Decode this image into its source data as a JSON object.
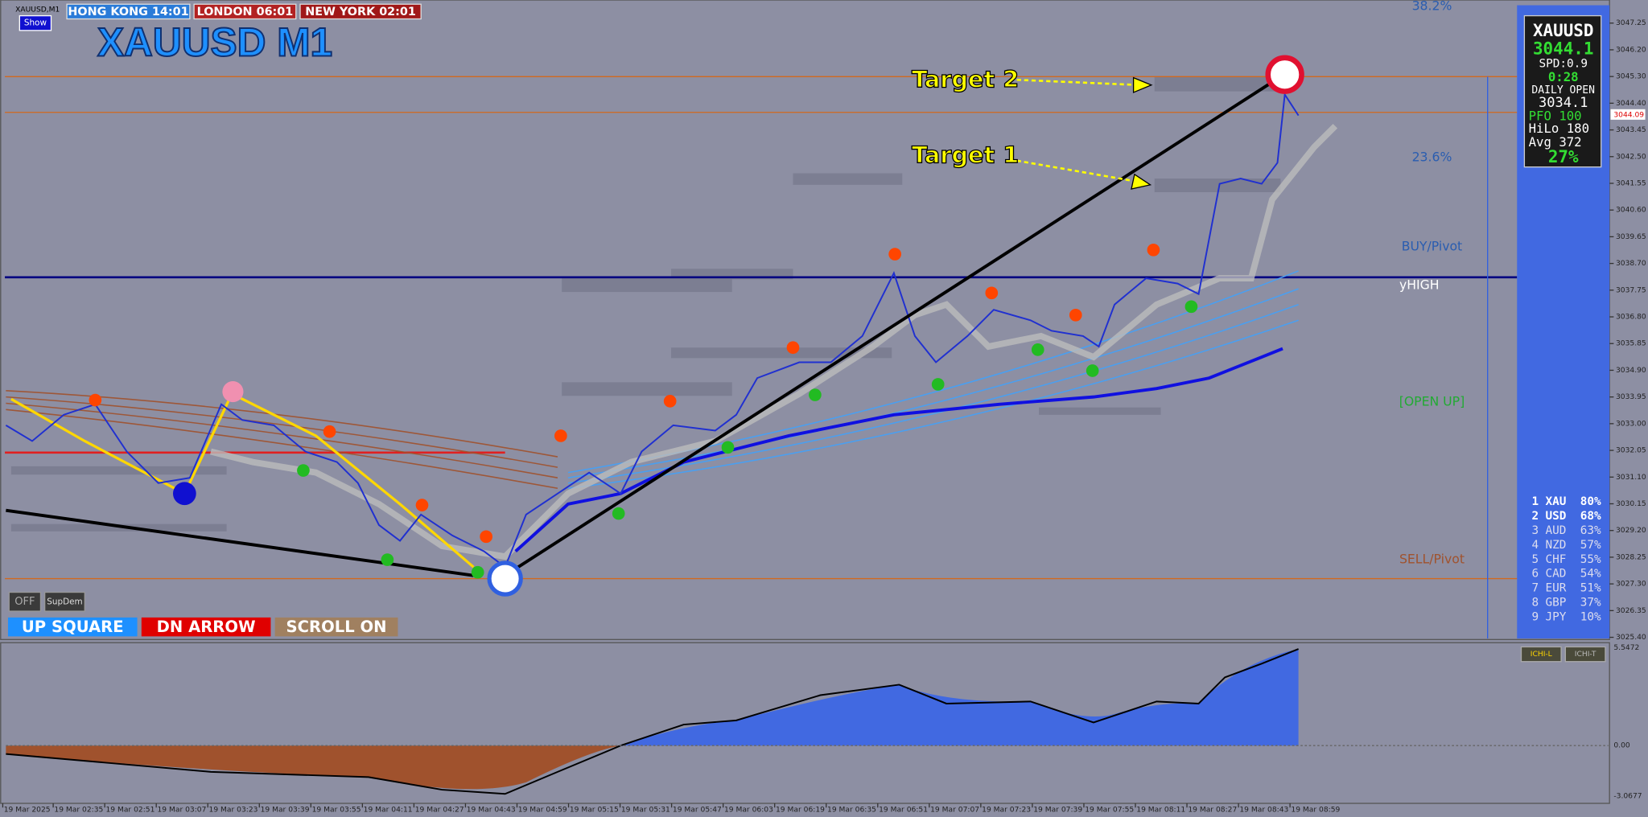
{
  "window": {
    "title": "XAUUSD,M1",
    "show_button": "Show"
  },
  "clocks": [
    "HONG KONG 14:01",
    "LONDON 06:01",
    "NEW YORK 02:01"
  ],
  "symbol_title": "XAUUSD M1",
  "annotations": {
    "target_2": "Target 2",
    "target_1": "Target 1"
  },
  "levels": {
    "fib_382": "38.2%",
    "fib_236": "23.6%",
    "buy_pivot": "BUY/Pivot",
    "y_high": "yHIGH",
    "open_up": "[OPEN UP]",
    "sell_pivot": "SELL/Pivot"
  },
  "buttons": {
    "off": "OFF",
    "supdem": "SupDem",
    "up_square": "UP SQUARE",
    "dn_arrow": "DN ARROW",
    "scroll_on": "SCROLL ON"
  },
  "info_panel": {
    "symbol": "XAUUSD",
    "price": "3044.1",
    "spread": "SPD:0.9",
    "timer": "0:28",
    "daily_open_label": "DAILY OPEN",
    "daily_open": "3034.1",
    "pfo": "PFO  100",
    "hilo": "HiLo  180",
    "avg": "Avg  372",
    "percent": "27%"
  },
  "currency_strength": [
    {
      "rank": "1",
      "currency": "XAU",
      "strength": "80%"
    },
    {
      "rank": "2",
      "currency": "USD",
      "strength": "68%"
    },
    {
      "rank": "3",
      "currency": "AUD",
      "strength": "63%"
    },
    {
      "rank": "4",
      "currency": "NZD",
      "strength": "57%"
    },
    {
      "rank": "5",
      "currency": "CHF",
      "strength": "55%"
    },
    {
      "rank": "6",
      "currency": "CAD",
      "strength": "54%"
    },
    {
      "rank": "7",
      "currency": "EUR",
      "strength": "51%"
    },
    {
      "rank": "8",
      "currency": "GBP",
      "strength": "37%"
    },
    {
      "rank": "9",
      "currency": "JPY",
      "strength": "10%"
    }
  ],
  "price_axis": [
    "3047.25",
    "3046.20",
    "3045.30",
    "3044.40",
    "3043.45",
    "3042.50",
    "3041.55",
    "3040.60",
    "3039.65",
    "3038.70",
    "3037.75",
    "3036.80",
    "3035.85",
    "3034.90",
    "3033.95",
    "3033.00",
    "3032.05",
    "3031.10",
    "3030.15",
    "3029.20",
    "3028.25",
    "3027.30",
    "3026.35",
    "3025.40"
  ],
  "current_price_label": "3044.09",
  "time_axis": [
    "19 Mar 2025",
    "19 Mar 02:35",
    "19 Mar 02:51",
    "19 Mar 03:07",
    "19 Mar 03:23",
    "19 Mar 03:39",
    "19 Mar 03:55",
    "19 Mar 04:11",
    "19 Mar 04:27",
    "19 Mar 04:43",
    "19 Mar 04:59",
    "19 Mar 05:15",
    "19 Mar 05:31",
    "19 Mar 05:47",
    "19 Mar 06:03",
    "19 Mar 06:19",
    "19 Mar 06:35",
    "19 Mar 06:51",
    "19 Mar 07:07",
    "19 Mar 07:23",
    "19 Mar 07:39",
    "19 Mar 07:55",
    "19 Mar 08:11",
    "19 Mar 08:27",
    "19 Mar 08:43",
    "19 Mar 08:59"
  ],
  "indicator": {
    "buttons": [
      "ICHI-L",
      "ICHI-T"
    ],
    "axis": [
      "5.5472",
      "0.00",
      "-3.0677"
    ]
  }
}
